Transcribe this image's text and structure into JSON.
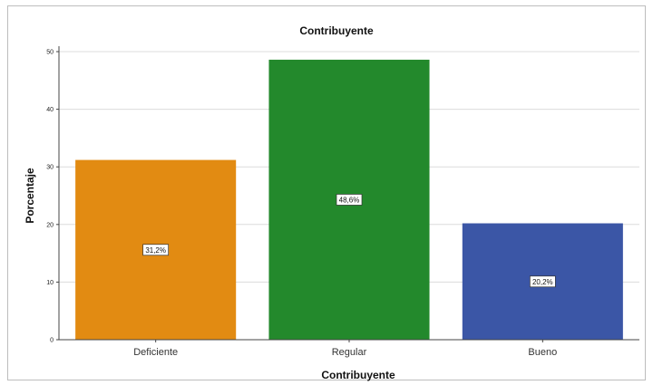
{
  "chart_data": {
    "type": "bar",
    "title": "Contribuyente",
    "xlabel": "Contribuyente",
    "ylabel": "Porcentaje",
    "categories": [
      "Deficiente",
      "Regular",
      "Bueno"
    ],
    "values": [
      31.2,
      48.6,
      20.2
    ],
    "data_labels": [
      "31,2%",
      "48,6%",
      "20,2%"
    ],
    "colors": [
      "#e28b12",
      "#23892c",
      "#3b56a6"
    ],
    "ylim": [
      0,
      50
    ],
    "yticks": [
      0,
      10,
      20,
      30,
      40,
      50
    ],
    "grid": true,
    "legend": "none"
  }
}
